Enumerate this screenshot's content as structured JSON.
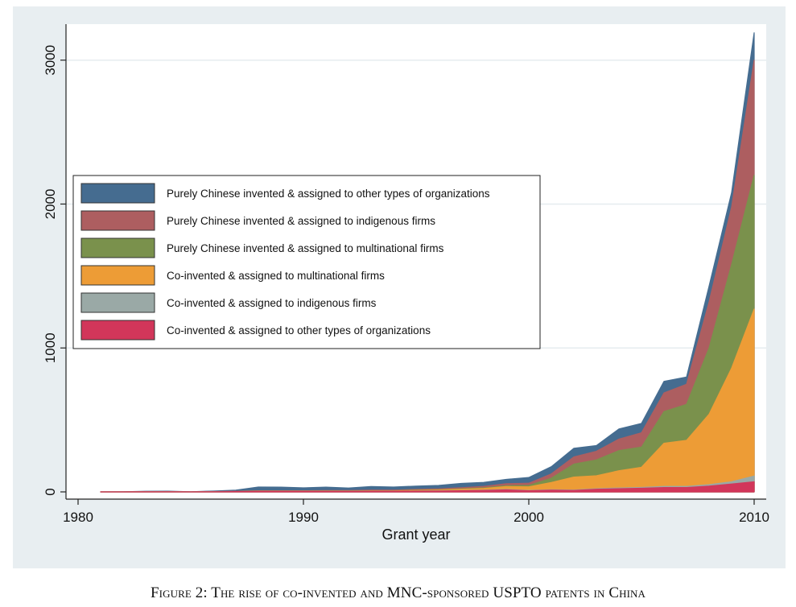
{
  "caption": "Figure 2: The rise of co-invented and MNC-sponsored USPTO patents in China",
  "chart_data": {
    "type": "area",
    "stacked": true,
    "xlabel": "Grant year",
    "ylabel": "",
    "xlim": [
      1980,
      2010
    ],
    "ylim": [
      0,
      3250
    ],
    "xticks": [
      1980,
      1990,
      2000,
      2010
    ],
    "yticks": [
      0,
      1000,
      2000,
      3000
    ],
    "grid": "horizontal",
    "legend_position": "upper-left inside",
    "x": [
      1981,
      1982,
      1983,
      1984,
      1985,
      1986,
      1987,
      1988,
      1989,
      1990,
      1991,
      1992,
      1993,
      1994,
      1995,
      1996,
      1997,
      1998,
      1999,
      2000,
      2001,
      2002,
      2003,
      2004,
      2005,
      2006,
      2007,
      2008,
      2009,
      2010
    ],
    "series": [
      {
        "name": "Co-invented & assigned to other types of organizations",
        "color": "#d2365a",
        "values": [
          0,
          0,
          1,
          1,
          0,
          1,
          2,
          3,
          3,
          3,
          3,
          3,
          4,
          4,
          5,
          6,
          8,
          10,
          14,
          8,
          12,
          10,
          18,
          22,
          25,
          30,
          30,
          40,
          55,
          70
        ]
      },
      {
        "name": "Co-invented & assigned to indigenous firms",
        "color": "#9aa9a6",
        "values": [
          0,
          0,
          0,
          0,
          0,
          0,
          0,
          0,
          0,
          0,
          0,
          0,
          0,
          0,
          1,
          1,
          1,
          2,
          3,
          2,
          3,
          3,
          4,
          5,
          6,
          8,
          8,
          10,
          15,
          40
        ]
      },
      {
        "name": "Co-invented & assigned to multinational firms",
        "color": "#ed9c36",
        "values": [
          0,
          0,
          0,
          0,
          0,
          0,
          0,
          1,
          1,
          1,
          2,
          2,
          3,
          3,
          4,
          6,
          9,
          12,
          20,
          25,
          50,
          90,
          90,
          120,
          140,
          300,
          320,
          490,
          790,
          1160
        ]
      },
      {
        "name": "Purely Chinese invented & assigned to multinational firms",
        "color": "#7a914c",
        "values": [
          0,
          0,
          0,
          0,
          0,
          0,
          0,
          1,
          1,
          1,
          1,
          1,
          1,
          1,
          2,
          2,
          3,
          4,
          6,
          10,
          30,
          90,
          110,
          140,
          140,
          220,
          250,
          460,
          720,
          930
        ]
      },
      {
        "name": "Purely Chinese invented & assigned to indigenous firms",
        "color": "#ad5e60",
        "values": [
          0,
          0,
          1,
          1,
          0,
          1,
          2,
          3,
          3,
          3,
          3,
          3,
          4,
          4,
          5,
          6,
          8,
          10,
          14,
          15,
          30,
          50,
          60,
          80,
          100,
          130,
          140,
          320,
          400,
          800
        ]
      },
      {
        "name": "Purely Chinese invented & assigned to other types of organizations",
        "color": "#456c90",
        "values": [
          0,
          1,
          2,
          3,
          1,
          4,
          8,
          26,
          25,
          20,
          24,
          18,
          25,
          22,
          23,
          24,
          30,
          28,
          30,
          40,
          50,
          60,
          40,
          70,
          65,
          80,
          50,
          110,
          100,
          190
        ]
      }
    ]
  }
}
